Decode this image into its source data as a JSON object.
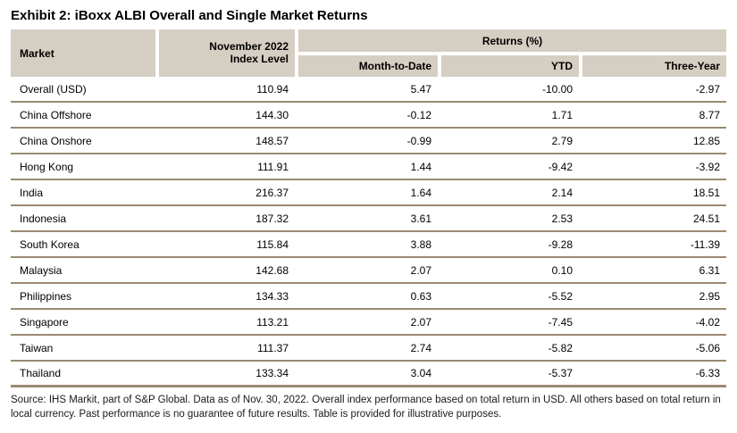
{
  "title": "Exhibit 2: iBoxx ALBI Overall and Single Market Returns",
  "colors": {
    "header_bg": "#d5cec2",
    "border": "#9a8a72",
    "text": "#000000"
  },
  "table": {
    "headers": {
      "market": "Market",
      "index_level_line1": "November 2022",
      "index_level_line2": "Index Level",
      "returns_group": "Returns (%)",
      "mtd": "Month-to-Date",
      "ytd": "YTD",
      "three_year": "Three-Year"
    },
    "rows": [
      {
        "market": "Overall (USD)",
        "index_level": "110.94",
        "mtd": "5.47",
        "ytd": "-10.00",
        "three_year": "-2.97"
      },
      {
        "market": "China Offshore",
        "index_level": "144.30",
        "mtd": "-0.12",
        "ytd": "1.71",
        "three_year": "8.77"
      },
      {
        "market": "China Onshore",
        "index_level": "148.57",
        "mtd": "-0.99",
        "ytd": "2.79",
        "three_year": "12.85"
      },
      {
        "market": "Hong Kong",
        "index_level": "111.91",
        "mtd": "1.44",
        "ytd": "-9.42",
        "three_year": "-3.92"
      },
      {
        "market": "India",
        "index_level": "216.37",
        "mtd": "1.64",
        "ytd": "2.14",
        "three_year": "18.51"
      },
      {
        "market": "Indonesia",
        "index_level": "187.32",
        "mtd": "3.61",
        "ytd": "2.53",
        "three_year": "24.51"
      },
      {
        "market": "South Korea",
        "index_level": "115.84",
        "mtd": "3.88",
        "ytd": "-9.28",
        "three_year": "-11.39"
      },
      {
        "market": "Malaysia",
        "index_level": "142.68",
        "mtd": "2.07",
        "ytd": "0.10",
        "three_year": "6.31"
      },
      {
        "market": "Philippines",
        "index_level": "134.33",
        "mtd": "0.63",
        "ytd": "-5.52",
        "three_year": "2.95"
      },
      {
        "market": "Singapore",
        "index_level": "113.21",
        "mtd": "2.07",
        "ytd": "-7.45",
        "three_year": "-4.02"
      },
      {
        "market": "Taiwan",
        "index_level": "111.37",
        "mtd": "2.74",
        "ytd": "-5.82",
        "three_year": "-5.06"
      },
      {
        "market": "Thailand",
        "index_level": "133.34",
        "mtd": "3.04",
        "ytd": "-5.37",
        "three_year": "-6.33"
      }
    ]
  },
  "footnote": "Source: IHS Markit, part of S&P Global.  Data as of Nov. 30, 2022.  Overall index performance based on total return in USD.  All others based on total return in local currency.  Past performance is no guarantee of future results.  Table is provided for illustrative purposes."
}
